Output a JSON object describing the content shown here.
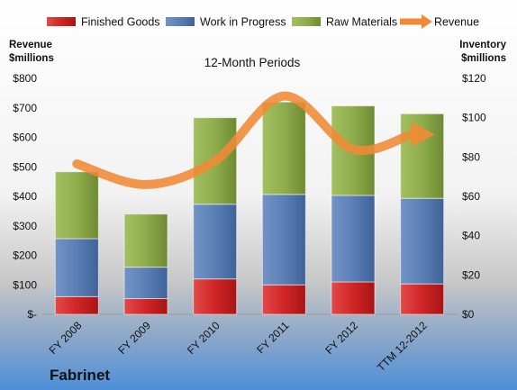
{
  "company": "Fabrinet",
  "chart_data": {
    "type": "bar",
    "stacked": true,
    "title": "12-Month Periods",
    "categories": [
      "FY 2008",
      "FY 2009",
      "FY 2010",
      "FY 2011",
      "FY 2012",
      "TTM 12-2012"
    ],
    "left_axis": {
      "label_line1": "Revenue",
      "label_line2": "$millions",
      "ylim": [
        0,
        800
      ],
      "ticks": [
        "$-",
        "$100",
        "$200",
        "$300",
        "$400",
        "$500",
        "$600",
        "$700",
        "$800"
      ]
    },
    "right_axis": {
      "label_line1": "Inventory",
      "label_line2": "$millions",
      "ylim": [
        0,
        120
      ],
      "ticks": [
        "$0",
        "$20",
        "$40",
        "$60",
        "$80",
        "$100",
        "$120"
      ]
    },
    "series": [
      {
        "name": "Finished Goods",
        "type": "bar",
        "axis": "right",
        "color": "#d32f2f",
        "values": [
          9,
          8,
          18,
          15,
          16.5,
          15.5
        ]
      },
      {
        "name": "Work in Progress",
        "type": "bar",
        "axis": "right",
        "color": "#5b7fb5",
        "values": [
          29.5,
          16,
          38,
          46,
          44,
          43.5
        ]
      },
      {
        "name": "Raw Materials",
        "type": "bar",
        "axis": "right",
        "color": "#8fad4c",
        "values": [
          34,
          27,
          44,
          47,
          45.5,
          43
        ]
      },
      {
        "name": "Revenue",
        "type": "line",
        "axis": "left",
        "color": "#f08a35",
        "values": [
          510,
          440,
          520,
          740,
          560,
          610
        ]
      }
    ],
    "legend": "top"
  }
}
